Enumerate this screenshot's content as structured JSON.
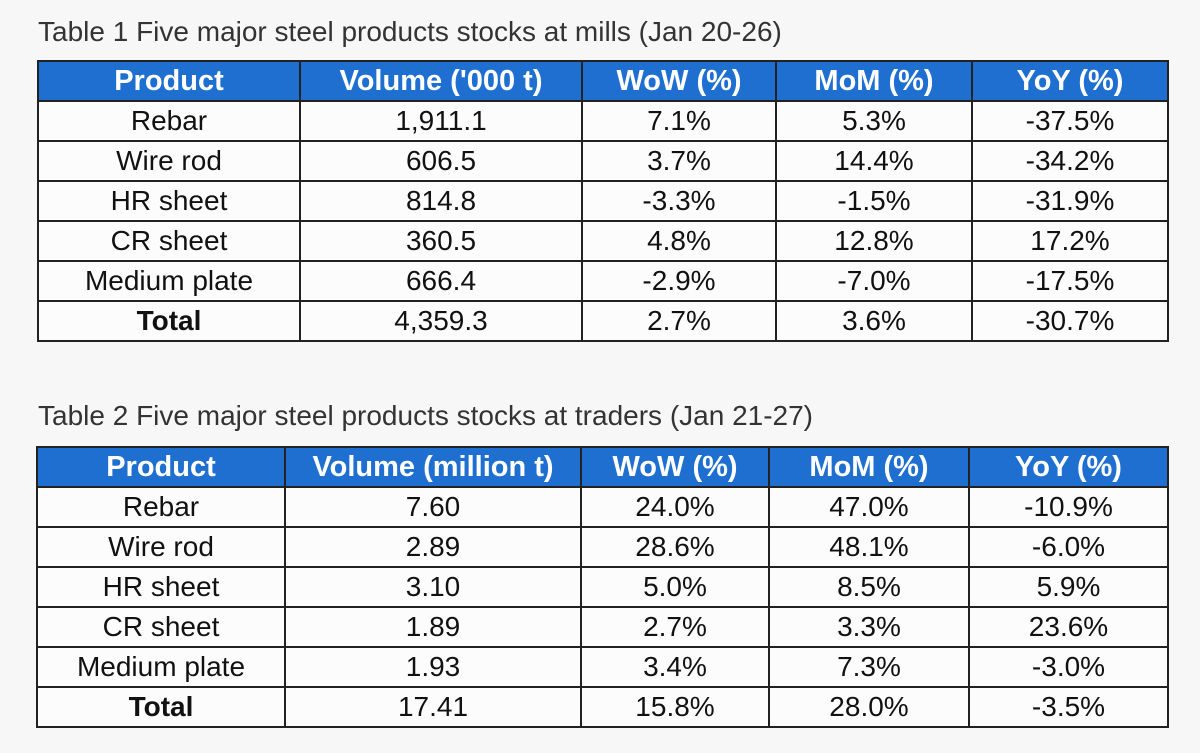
{
  "table1": {
    "caption": "Table 1 Five major steel products stocks at mills (Jan 20-26)",
    "headers": [
      "Product",
      "Volume ('000 t)",
      "WoW (%)",
      "MoM (%)",
      "YoY (%)"
    ],
    "rows": [
      [
        "Rebar",
        "1,911.1",
        "7.1%",
        "5.3%",
        "-37.5%"
      ],
      [
        "Wire rod",
        "606.5",
        "3.7%",
        "14.4%",
        "-34.2%"
      ],
      [
        "HR sheet",
        "814.8",
        "-3.3%",
        "-1.5%",
        "-31.9%"
      ],
      [
        "CR sheet",
        "360.5",
        "4.8%",
        "12.8%",
        "17.2%"
      ],
      [
        "Medium plate",
        "666.4",
        "-2.9%",
        "-7.0%",
        "-17.5%"
      ],
      [
        "Total",
        "4,359.3",
        "2.7%",
        "3.6%",
        "-30.7%"
      ]
    ]
  },
  "table2": {
    "caption": "Table 2 Five major steel products stocks at traders (Jan 21-27)",
    "headers": [
      "Product",
      "Volume (million t)",
      "WoW (%)",
      "MoM (%)",
      "YoY (%)"
    ],
    "rows": [
      [
        "Rebar",
        "7.60",
        "24.0%",
        "47.0%",
        "-10.9%"
      ],
      [
        "Wire rod",
        "2.89",
        "28.6%",
        "48.1%",
        "-6.0%"
      ],
      [
        "HR sheet",
        "3.10",
        "5.0%",
        "8.5%",
        "5.9%"
      ],
      [
        "CR sheet",
        "1.89",
        "2.7%",
        "3.3%",
        "23.6%"
      ],
      [
        "Medium plate",
        "1.93",
        "3.4%",
        "7.3%",
        "-3.0%"
      ],
      [
        "Total",
        "17.41",
        "15.8%",
        "28.0%",
        "-3.5%"
      ]
    ]
  },
  "colors": {
    "header_background": "#1e6fcf",
    "header_text": "#ffffff",
    "border": "#222222"
  }
}
